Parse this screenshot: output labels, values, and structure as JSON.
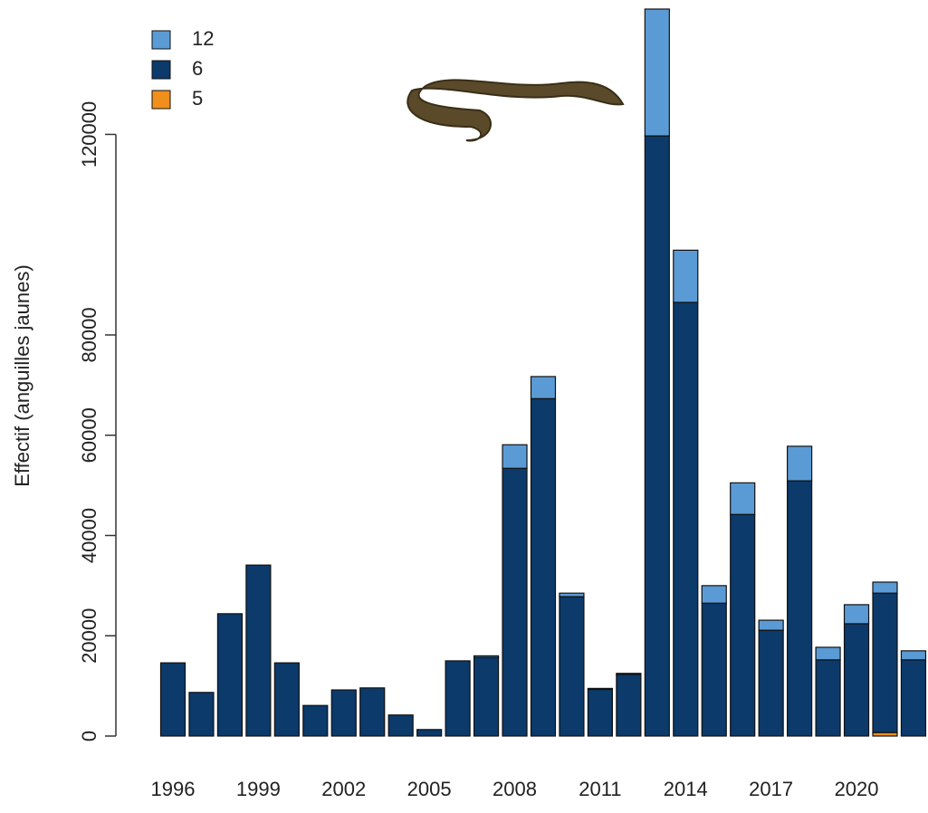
{
  "chart_data": {
    "type": "bar",
    "stacked": true,
    "ylabel": "Effectif (anguilles jaunes)",
    "categories": [
      "1996",
      null,
      null,
      "1999",
      null,
      null,
      "2002",
      null,
      null,
      "2005",
      null,
      null,
      "2008",
      null,
      null,
      "2011",
      null,
      null,
      "2014",
      null,
      null,
      "2017",
      null,
      null,
      "2020",
      null,
      null
    ],
    "series": [
      {
        "name": "12",
        "color": "#5b9bd5",
        "values": [
          0,
          0,
          0,
          0,
          0,
          0,
          0,
          0,
          0,
          0,
          0,
          300,
          4700,
          4400,
          700,
          200,
          200,
          25300,
          10400,
          3500,
          6300,
          2000,
          6900,
          2500,
          3800,
          2200,
          1800
        ]
      },
      {
        "name": "6",
        "color": "#0b3a6b",
        "values": [
          14600,
          8700,
          24400,
          34100,
          14600,
          6100,
          9200,
          9600,
          4200,
          1300,
          15000,
          15700,
          53400,
          67300,
          27800,
          9300,
          12300,
          119700,
          86500,
          26500,
          44200,
          21100,
          50900,
          15200,
          22400,
          27800,
          15200
        ]
      },
      {
        "name": "5",
        "color": "#f28e1c",
        "values": [
          0,
          0,
          0,
          0,
          0,
          0,
          0,
          0,
          0,
          0,
          0,
          0,
          0,
          0,
          0,
          0,
          0,
          0,
          0,
          0,
          0,
          0,
          0,
          0,
          0,
          700,
          0
        ]
      }
    ],
    "ylim": [
      0,
      145000
    ],
    "yticks": [
      0,
      20000,
      40000,
      60000,
      80000,
      120000
    ],
    "legend": "top-left"
  }
}
